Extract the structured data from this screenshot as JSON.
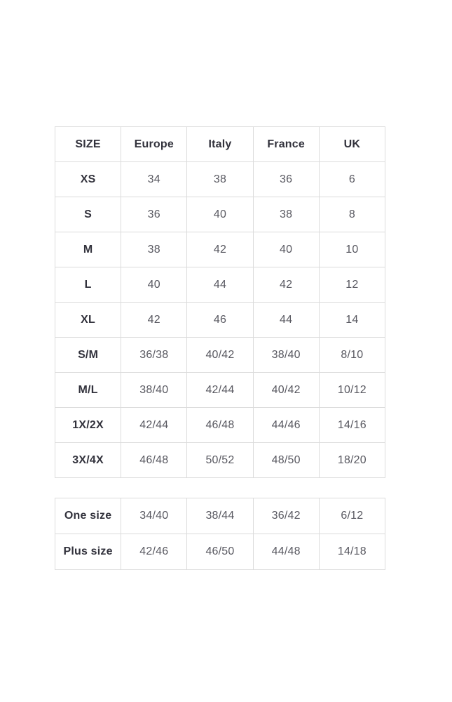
{
  "page": {
    "background": "#ffffff"
  },
  "colors": {
    "border": "#dcdcdc",
    "header_text": "#32323c",
    "label_text": "#32323c",
    "value_text": "#585860"
  },
  "size_chart": {
    "headers": [
      "SIZE",
      "Europe",
      "Italy",
      "France",
      "UK"
    ],
    "rows": [
      {
        "label": "XS",
        "values": [
          "34",
          "38",
          "36",
          "6"
        ]
      },
      {
        "label": "S",
        "values": [
          "36",
          "40",
          "38",
          "8"
        ]
      },
      {
        "label": "M",
        "values": [
          "38",
          "42",
          "40",
          "10"
        ]
      },
      {
        "label": "L",
        "values": [
          "40",
          "44",
          "42",
          "12"
        ]
      },
      {
        "label": "XL",
        "values": [
          "42",
          "46",
          "44",
          "14"
        ]
      },
      {
        "label": "S/M",
        "values": [
          "36/38",
          "40/42",
          "38/40",
          "8/10"
        ]
      },
      {
        "label": "M/L",
        "values": [
          "38/40",
          "42/44",
          "40/42",
          "10/12"
        ]
      },
      {
        "label": "1X/2X",
        "values": [
          "42/44",
          "46/48",
          "44/46",
          "14/16"
        ]
      },
      {
        "label": "3X/4X",
        "values": [
          "46/48",
          "50/52",
          "48/50",
          "18/20"
        ]
      }
    ]
  },
  "extra_sizes": {
    "rows": [
      {
        "label": "One size",
        "values": [
          "34/40",
          "38/44",
          "36/42",
          "6/12"
        ]
      },
      {
        "label": "Plus size",
        "values": [
          "42/46",
          "46/50",
          "44/48",
          "14/18"
        ]
      }
    ]
  }
}
